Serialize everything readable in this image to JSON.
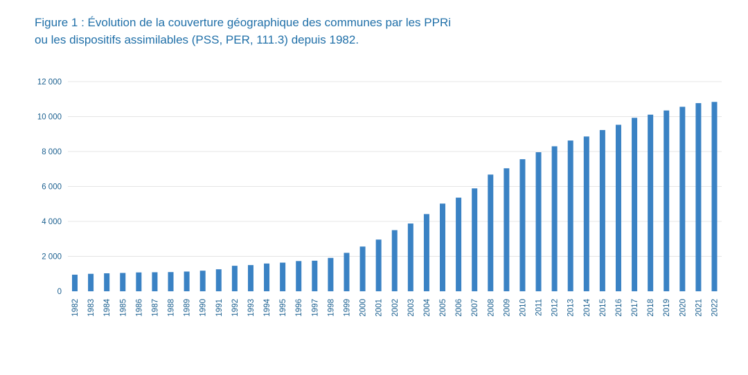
{
  "title_lines": [
    "Figure 1 : Évolution de la couverture géographique des communes par les PPRi",
    "ou les dispositifs assimilables (PSS, PER, 111.3) depuis 1982."
  ],
  "colors": {
    "title": "#1f6fa8",
    "bar": "#3a82c4",
    "axis_text": "#1a5f8f",
    "grid": "#e4e4e4"
  },
  "chart_data": {
    "type": "bar",
    "title": "Figure 1 : Évolution de la couverture géographique des communes par les PPRi ou les dispositifs assimilables (PSS, PER, 111.3) depuis 1982.",
    "xlabel": "",
    "ylabel": "",
    "ylim": [
      0,
      12000
    ],
    "yticks": [
      0,
      2000,
      4000,
      6000,
      8000,
      10000,
      12000
    ],
    "ytick_labels": [
      "0",
      "2 000",
      "4 000",
      "6 000",
      "8 000",
      "10 000",
      "12 000"
    ],
    "grid": true,
    "legend": "none",
    "categories": [
      "1982",
      "1983",
      "1984",
      "1985",
      "1986",
      "1987",
      "1988",
      "1989",
      "1990",
      "1991",
      "1992",
      "1993",
      "1994",
      "1995",
      "1996",
      "1997",
      "1998",
      "1999",
      "2000",
      "2001",
      "2002",
      "2003",
      "2004",
      "2005",
      "2006",
      "2007",
      "2008",
      "2009",
      "2010",
      "2011",
      "2012",
      "2013",
      "2014",
      "2015",
      "2016",
      "2017",
      "2018",
      "2019",
      "2020",
      "2021",
      "2022"
    ],
    "values": [
      950,
      1000,
      1030,
      1050,
      1080,
      1090,
      1100,
      1130,
      1180,
      1260,
      1460,
      1500,
      1590,
      1640,
      1730,
      1750,
      1910,
      2200,
      2560,
      2960,
      3500,
      3880,
      4420,
      5020,
      5360,
      5890,
      6680,
      7040,
      7560,
      7960,
      8300,
      8630,
      8860,
      9230,
      9530,
      9930,
      10110,
      10350,
      10560,
      10770,
      10840
    ]
  }
}
